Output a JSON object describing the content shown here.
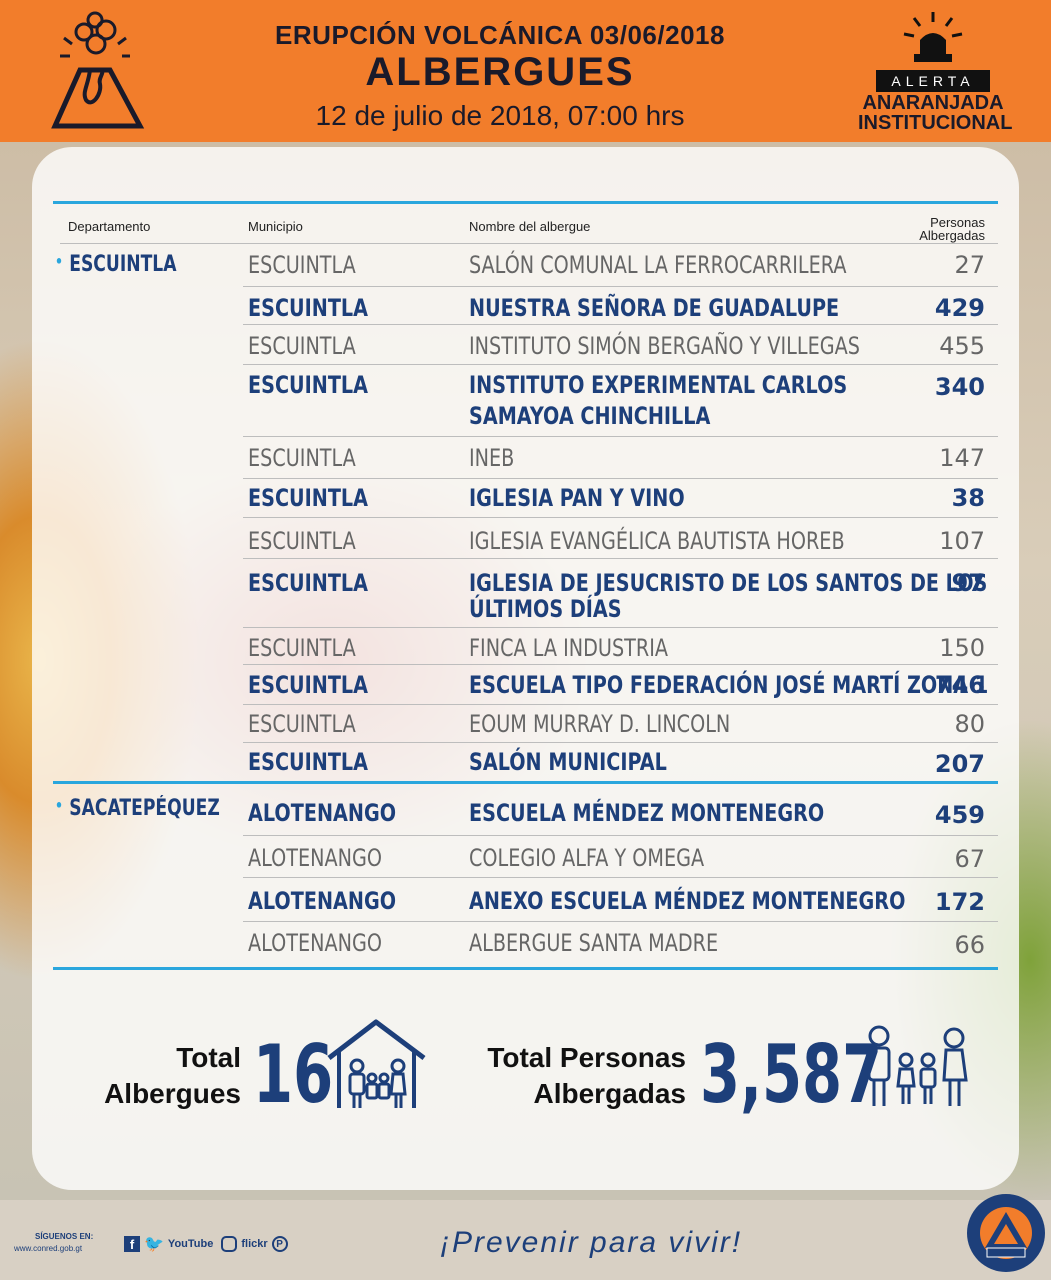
{
  "header": {
    "event": "ERUPCIÓN VOLCÁNICA 03/06/2018",
    "title": "ALBERGUES",
    "date": "12 de julio de 2018, 07:00 hrs",
    "alert_label": "ALERTA",
    "alert_line1": "ANARANJADA",
    "alert_line2": "INSTITUCIONAL"
  },
  "table": {
    "columns": {
      "departamento": "Departamento",
      "municipio": "Municipio",
      "nombre": "Nombre del albergue",
      "personas_line1": "Personas",
      "personas_line2": "Albergadas"
    },
    "departments": [
      {
        "name": "ESCUINTLA"
      },
      {
        "name": "SACATEPÉQUEZ"
      }
    ],
    "rows": [
      {
        "municipio": "ESCUINTLA",
        "nombre": "SALÓN COMUNAL LA FERROCARRILERA",
        "personas": "27"
      },
      {
        "municipio": "ESCUINTLA",
        "nombre": "NUESTRA SEÑORA DE GUADALUPE",
        "personas": "429"
      },
      {
        "municipio": "ESCUINTLA",
        "nombre": "INSTITUTO SIMÓN BERGAÑO Y VILLEGAS",
        "personas": "455"
      },
      {
        "municipio": "ESCUINTLA",
        "nombre": "INSTITUTO EXPERIMENTAL CARLOS",
        "nombre2": "SAMAYOA CHINCHILLA",
        "personas": "340"
      },
      {
        "municipio": "ESCUINTLA",
        "nombre": "INEB",
        "personas": "147"
      },
      {
        "municipio": "ESCUINTLA",
        "nombre": "IGLESIA PAN Y VINO",
        "personas": "38"
      },
      {
        "municipio": "ESCUINTLA",
        "nombre": "IGLESIA EVANGÉLICA BAUTISTA HOREB",
        "personas": "107"
      },
      {
        "municipio": "ESCUINTLA",
        "nombre": "IGLESIA DE JESUCRISTO DE LOS SANTOS DE LOS",
        "nombre2": "ÚLTIMOS DÍAS",
        "personas": "97"
      },
      {
        "municipio": "ESCUINTLA",
        "nombre": "FINCA LA INDUSTRIA",
        "personas": "150"
      },
      {
        "municipio": "ESCUINTLA",
        "nombre": "ESCUELA TIPO FEDERACIÓN JOSÉ MARTÍ ZONA 1",
        "personas": "746"
      },
      {
        "municipio": "ESCUINTLA",
        "nombre": "EOUM MURRAY D. LINCOLN",
        "personas": "80"
      },
      {
        "municipio": "ESCUINTLA",
        "nombre": "SALÓN MUNICIPAL",
        "personas": "207"
      },
      {
        "municipio": "ALOTENANGO",
        "nombre": "ESCUELA MÉNDEZ MONTENEGRO",
        "personas": "459"
      },
      {
        "municipio": "ALOTENANGO",
        "nombre": "COLEGIO ALFA Y OMEGA",
        "personas": "67"
      },
      {
        "municipio": "ALOTENANGO",
        "nombre": "ANEXO ESCUELA MÉNDEZ MONTENEGRO",
        "personas": "172"
      },
      {
        "municipio": "ALOTENANGO",
        "nombre": "ALBERGUE SANTA MADRE",
        "personas": "66"
      }
    ]
  },
  "totals": {
    "albergues_line1": "Total",
    "albergues_line2": "Albergues",
    "albergues_value": "16",
    "personas_line1": "Total Personas",
    "personas_line2": "Albergadas",
    "personas_value": "3,587"
  },
  "footer": {
    "follow": "SÍGUENOS EN:",
    "url": "www.conred.gob.gt",
    "social_youtube": "YouTube",
    "social_flickr": "flickr",
    "slogan": "¡Prevenir para vivir!"
  },
  "icons": [
    "volcano-icon",
    "alert-beacon-icon",
    "house-family-icon",
    "family-icon",
    "facebook-icon",
    "twitter-icon",
    "youtube-icon",
    "instagram-icon",
    "flickr-icon",
    "pinterest-icon",
    "conred-seal-icon"
  ],
  "colors": {
    "header": "#f27d2b",
    "accent": "#2aa6dd",
    "navy": "#1d3f7a"
  }
}
